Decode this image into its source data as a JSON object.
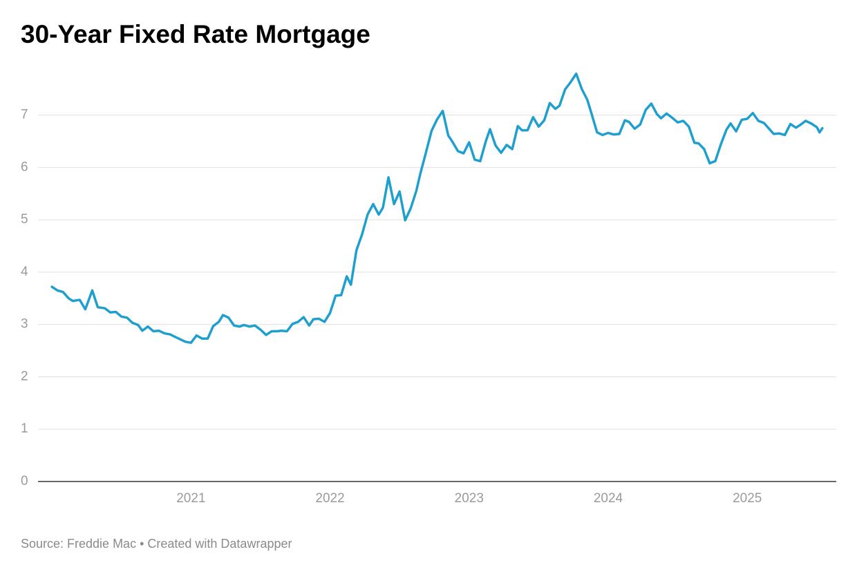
{
  "chart_data": {
    "type": "line",
    "title": "30-Year Fixed Rate Mortgage",
    "source": "Source: Freddie Mac • Created with Datawrapper",
    "color": "#1f9fcd",
    "grid": true,
    "xlim": [
      2019.9,
      2025.64
    ],
    "xticks": [
      2021,
      2022,
      2023,
      2024,
      2025
    ],
    "ylim": [
      0,
      7.8
    ],
    "yticks": [
      0,
      1,
      2,
      3,
      4,
      5,
      6,
      7
    ],
    "x": [
      2020.0,
      2020.04,
      2020.08,
      2020.12,
      2020.15,
      2020.2,
      2020.24,
      2020.29,
      2020.33,
      2020.38,
      2020.42,
      2020.46,
      2020.5,
      2020.54,
      2020.58,
      2020.62,
      2020.65,
      2020.69,
      2020.73,
      2020.77,
      2020.81,
      2020.85,
      2020.88,
      2020.92,
      2020.96,
      2021.0,
      2021.04,
      2021.08,
      2021.12,
      2021.16,
      2021.2,
      2021.23,
      2021.27,
      2021.31,
      2021.35,
      2021.38,
      2021.42,
      2021.46,
      2021.5,
      2021.54,
      2021.58,
      2021.62,
      2021.65,
      2021.69,
      2021.73,
      2021.77,
      2021.81,
      2021.85,
      2021.88,
      2021.92,
      2021.96,
      2022.0,
      2022.04,
      2022.08,
      2022.12,
      2022.15,
      2022.19,
      2022.23,
      2022.27,
      2022.31,
      2022.35,
      2022.38,
      2022.42,
      2022.46,
      2022.5,
      2022.54,
      2022.58,
      2022.62,
      2022.65,
      2022.69,
      2022.73,
      2022.77,
      2022.81,
      2022.85,
      2022.88,
      2022.92,
      2022.96,
      2023.0,
      2023.04,
      2023.08,
      2023.12,
      2023.15,
      2023.19,
      2023.23,
      2023.27,
      2023.31,
      2023.35,
      2023.38,
      2023.42,
      2023.46,
      2023.5,
      2023.54,
      2023.58,
      2023.62,
      2023.65,
      2023.69,
      2023.73,
      2023.77,
      2023.81,
      2023.85,
      2023.88,
      2023.92,
      2023.96,
      2024.0,
      2024.04,
      2024.08,
      2024.12,
      2024.15,
      2024.19,
      2024.23,
      2024.27,
      2024.31,
      2024.35,
      2024.38,
      2024.42,
      2024.46,
      2024.5,
      2024.54,
      2024.58,
      2024.62,
      2024.65,
      2024.69,
      2024.73,
      2024.77,
      2024.81,
      2024.85,
      2024.88,
      2024.92,
      2024.96,
      2025.0,
      2025.04,
      2025.08,
      2025.12,
      2025.15,
      2025.19,
      2025.23,
      2025.27,
      2025.31,
      2025.35,
      2025.38,
      2025.42,
      2025.46,
      2025.5,
      2025.52,
      2025.54
    ],
    "values": [
      3.72,
      3.65,
      3.62,
      3.5,
      3.45,
      3.47,
      3.29,
      3.65,
      3.33,
      3.31,
      3.23,
      3.24,
      3.15,
      3.13,
      3.03,
      2.99,
      2.88,
      2.96,
      2.87,
      2.88,
      2.83,
      2.81,
      2.77,
      2.72,
      2.67,
      2.65,
      2.79,
      2.73,
      2.73,
      2.97,
      3.05,
      3.18,
      3.13,
      2.98,
      2.96,
      2.99,
      2.96,
      2.98,
      2.9,
      2.8,
      2.87,
      2.87,
      2.88,
      2.87,
      3.01,
      3.05,
      3.14,
      2.98,
      3.1,
      3.11,
      3.05,
      3.22,
      3.55,
      3.56,
      3.92,
      3.76,
      4.42,
      4.72,
      5.1,
      5.3,
      5.1,
      5.23,
      5.81,
      5.3,
      5.54,
      4.99,
      5.22,
      5.55,
      5.89,
      6.29,
      6.7,
      6.92,
      7.08,
      6.61,
      6.49,
      6.31,
      6.27,
      6.48,
      6.15,
      6.12,
      6.5,
      6.73,
      6.42,
      6.28,
      6.43,
      6.35,
      6.79,
      6.71,
      6.71,
      6.96,
      6.78,
      6.9,
      7.23,
      7.12,
      7.18,
      7.49,
      7.63,
      7.79,
      7.5,
      7.29,
      7.03,
      6.67,
      6.62,
      6.66,
      6.63,
      6.64,
      6.9,
      6.87,
      6.74,
      6.82,
      7.1,
      7.22,
      7.02,
      6.94,
      7.03,
      6.95,
      6.86,
      6.89,
      6.78,
      6.47,
      6.46,
      6.35,
      6.08,
      6.12,
      6.44,
      6.72,
      6.84,
      6.69,
      6.91,
      6.93,
      7.04,
      6.89,
      6.85,
      6.76,
      6.64,
      6.65,
      6.62,
      6.83,
      6.76,
      6.81,
      6.89,
      6.84,
      6.77,
      6.67,
      6.75
    ]
  }
}
